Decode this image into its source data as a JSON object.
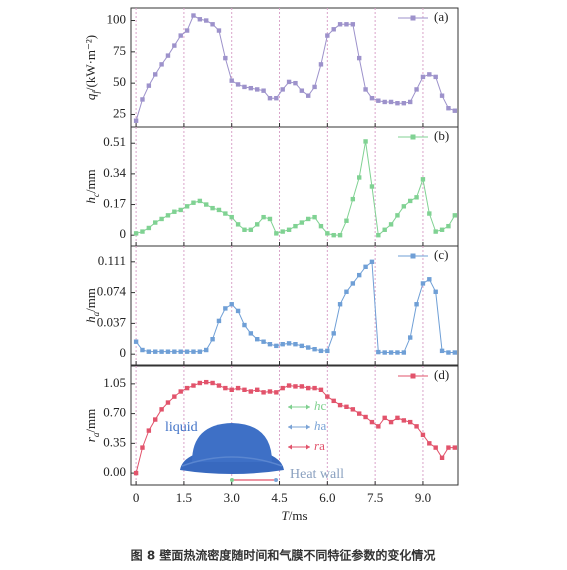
{
  "chart_data": [
    {
      "type": "line",
      "ylabel": [
        "q",
        "f",
        "/(kW·m⁻²)"
      ],
      "xlim": [
        -0.16,
        10.1
      ],
      "ylim": [
        15,
        110
      ],
      "yticks": [
        25,
        50,
        75,
        100
      ],
      "x": [
        0,
        0.2,
        0.4,
        0.6,
        0.8,
        1,
        1.2,
        1.4,
        1.6,
        1.8,
        2,
        2.2,
        2.4,
        2.6,
        2.8,
        3,
        3.2,
        3.4,
        3.6,
        3.8,
        4,
        4.2,
        4.4,
        4.6,
        4.8,
        5,
        5.2,
        5.4,
        5.6,
        5.8,
        6,
        6.2,
        6.4,
        6.6,
        6.8,
        7,
        7.2,
        7.4,
        7.6,
        7.8,
        8,
        8.2,
        8.4,
        8.6,
        8.8,
        9,
        9.2,
        9.4,
        9.6,
        9.8,
        10
      ],
      "series": [
        {
          "name": "(a)",
          "color": "#9d92cb",
          "values": [
            20,
            37,
            48,
            57,
            65,
            72,
            80,
            88,
            92,
            104,
            101,
            100,
            97,
            92,
            70,
            52,
            49,
            47,
            46,
            45,
            44,
            38,
            38,
            45,
            51,
            50,
            44,
            40,
            47,
            65,
            88,
            93,
            97,
            97,
            97,
            70,
            45,
            38,
            36,
            35,
            35,
            34,
            34,
            35,
            45,
            55,
            57,
            55,
            40,
            30,
            28
          ]
        }
      ]
    },
    {
      "type": "line",
      "ylabel": [
        "h",
        "c",
        "/mm"
      ],
      "xlim": [
        -0.16,
        10.1
      ],
      "ylim": [
        -0.06,
        0.6
      ],
      "yticks": [
        {
          "value": 0,
          "label": "0"
        },
        0.17,
        0.34,
        0.51
      ],
      "x": [
        0,
        0.2,
        0.4,
        0.6,
        0.8,
        1,
        1.2,
        1.4,
        1.6,
        1.8,
        2,
        2.2,
        2.4,
        2.6,
        2.8,
        3,
        3.2,
        3.4,
        3.6,
        3.8,
        4,
        4.2,
        4.4,
        4.6,
        4.8,
        5,
        5.2,
        5.4,
        5.6,
        5.8,
        6,
        6.2,
        6.4,
        6.6,
        6.8,
        7,
        7.2,
        7.4,
        7.6,
        7.8,
        8,
        8.2,
        8.4,
        8.6,
        8.8,
        9,
        9.2,
        9.4,
        9.6,
        9.8,
        10
      ],
      "series": [
        {
          "name": "(b)",
          "color": "#80d293",
          "values": [
            0.01,
            0.02,
            0.04,
            0.07,
            0.09,
            0.11,
            0.13,
            0.14,
            0.16,
            0.18,
            0.19,
            0.17,
            0.15,
            0.14,
            0.12,
            0.1,
            0.06,
            0.03,
            0.03,
            0.06,
            0.1,
            0.09,
            0.01,
            0.02,
            0.03,
            0.05,
            0.07,
            0.09,
            0.1,
            0.05,
            0.01,
            0,
            0,
            0.08,
            0.2,
            0.32,
            0.52,
            0.27,
            0,
            0.03,
            0.06,
            0.11,
            0.16,
            0.19,
            0.21,
            0.31,
            0.12,
            0.02,
            0.03,
            0.05,
            0.11
          ]
        }
      ]
    },
    {
      "type": "line",
      "ylabel": [
        "h",
        "a",
        "/mm"
      ],
      "xlim": [
        -0.16,
        10.1
      ],
      "ylim": [
        -0.013,
        0.13
      ],
      "yticks": [
        0,
        0.037,
        0.074,
        0.111
      ],
      "x": [
        0,
        0.2,
        0.4,
        0.6,
        0.8,
        1,
        1.2,
        1.4,
        1.6,
        1.8,
        2,
        2.2,
        2.4,
        2.6,
        2.8,
        3,
        3.2,
        3.4,
        3.6,
        3.8,
        4,
        4.2,
        4.4,
        4.6,
        4.8,
        5,
        5.2,
        5.4,
        5.6,
        5.8,
        6,
        6.2,
        6.4,
        6.6,
        6.8,
        7,
        7.2,
        7.4,
        7.6,
        7.8,
        8,
        8.2,
        8.4,
        8.6,
        8.8,
        9,
        9.2,
        9.4,
        9.6,
        9.8,
        10
      ],
      "series": [
        {
          "name": "(c)",
          "color": "#6f9fd6",
          "values": [
            0.015,
            0.005,
            0.003,
            0.003,
            0.003,
            0.003,
            0.003,
            0.003,
            0.003,
            0.003,
            0.003,
            0.005,
            0.018,
            0.04,
            0.055,
            0.06,
            0.052,
            0.035,
            0.025,
            0.018,
            0.015,
            0.012,
            0.01,
            0.012,
            0.013,
            0.012,
            0.01,
            0.008,
            0.006,
            0.004,
            0.004,
            0.025,
            0.06,
            0.075,
            0.085,
            0.095,
            0.105,
            0.111,
            0.0025,
            0.002,
            0.002,
            0.002,
            0.002,
            0.02,
            0.06,
            0.085,
            0.09,
            0.075,
            0.004,
            0.002,
            0.002
          ]
        }
      ]
    },
    {
      "type": "line",
      "ylabel": [
        "r",
        "a",
        "/mm"
      ],
      "xlabel": [
        "T",
        "/ms"
      ],
      "xlim": [
        -0.16,
        10.1
      ],
      "ylim": [
        -0.14,
        1.26
      ],
      "yticks": [
        {
          "value": 0,
          "label": "0.00"
        },
        0.35,
        {
          "value": 0.7,
          "label": "0.70"
        },
        1.05
      ],
      "xticks": [
        0,
        1.5,
        {
          "value": 3,
          "label": "3.0"
        },
        4.5,
        {
          "value": 6,
          "label": "6.0"
        },
        7.5,
        {
          "value": 9,
          "label": "9.0"
        }
      ],
      "x": [
        0,
        0.2,
        0.4,
        0.6,
        0.8,
        1,
        1.2,
        1.4,
        1.6,
        1.8,
        2,
        2.2,
        2.4,
        2.6,
        2.8,
        3,
        3.2,
        3.4,
        3.6,
        3.8,
        4,
        4.2,
        4.4,
        4.6,
        4.8,
        5,
        5.2,
        5.4,
        5.6,
        5.8,
        6,
        6.2,
        6.4,
        6.6,
        6.8,
        7,
        7.2,
        7.4,
        7.6,
        7.8,
        8,
        8.2,
        8.4,
        8.6,
        8.8,
        9,
        9.2,
        9.4,
        9.6,
        9.8,
        10
      ],
      "series": [
        {
          "name": "(d)",
          "color": "#e2536b",
          "values": [
            0,
            0.3,
            0.5,
            0.63,
            0.75,
            0.83,
            0.9,
            0.96,
            1,
            1.03,
            1.06,
            1.07,
            1.06,
            1.03,
            1,
            0.98,
            1,
            0.98,
            0.96,
            0.98,
            0.95,
            0.96,
            0.95,
            1,
            1.03,
            1.02,
            1.02,
            1,
            1,
            0.98,
            0.9,
            0.85,
            0.8,
            0.78,
            0.75,
            0.7,
            0.66,
            0.6,
            0.55,
            0.65,
            0.6,
            0.65,
            0.62,
            0.6,
            0.55,
            0.45,
            0.35,
            0.3,
            0.18,
            0.3,
            0.3
          ]
        }
      ],
      "annotations": [
        "liquid",
        "Heat wall"
      ],
      "inset_legend": [
        {
          "label": [
            "h",
            "c"
          ],
          "color": "#7fd08f"
        },
        {
          "label": [
            "h",
            "a"
          ],
          "color": "#7aa3d6"
        },
        {
          "label": [
            "r",
            "a"
          ],
          "color": "#e2536b"
        }
      ]
    }
  ],
  "caption": "图 8  壁面热流密度随时间和气膜不同特征参数的变化情况"
}
